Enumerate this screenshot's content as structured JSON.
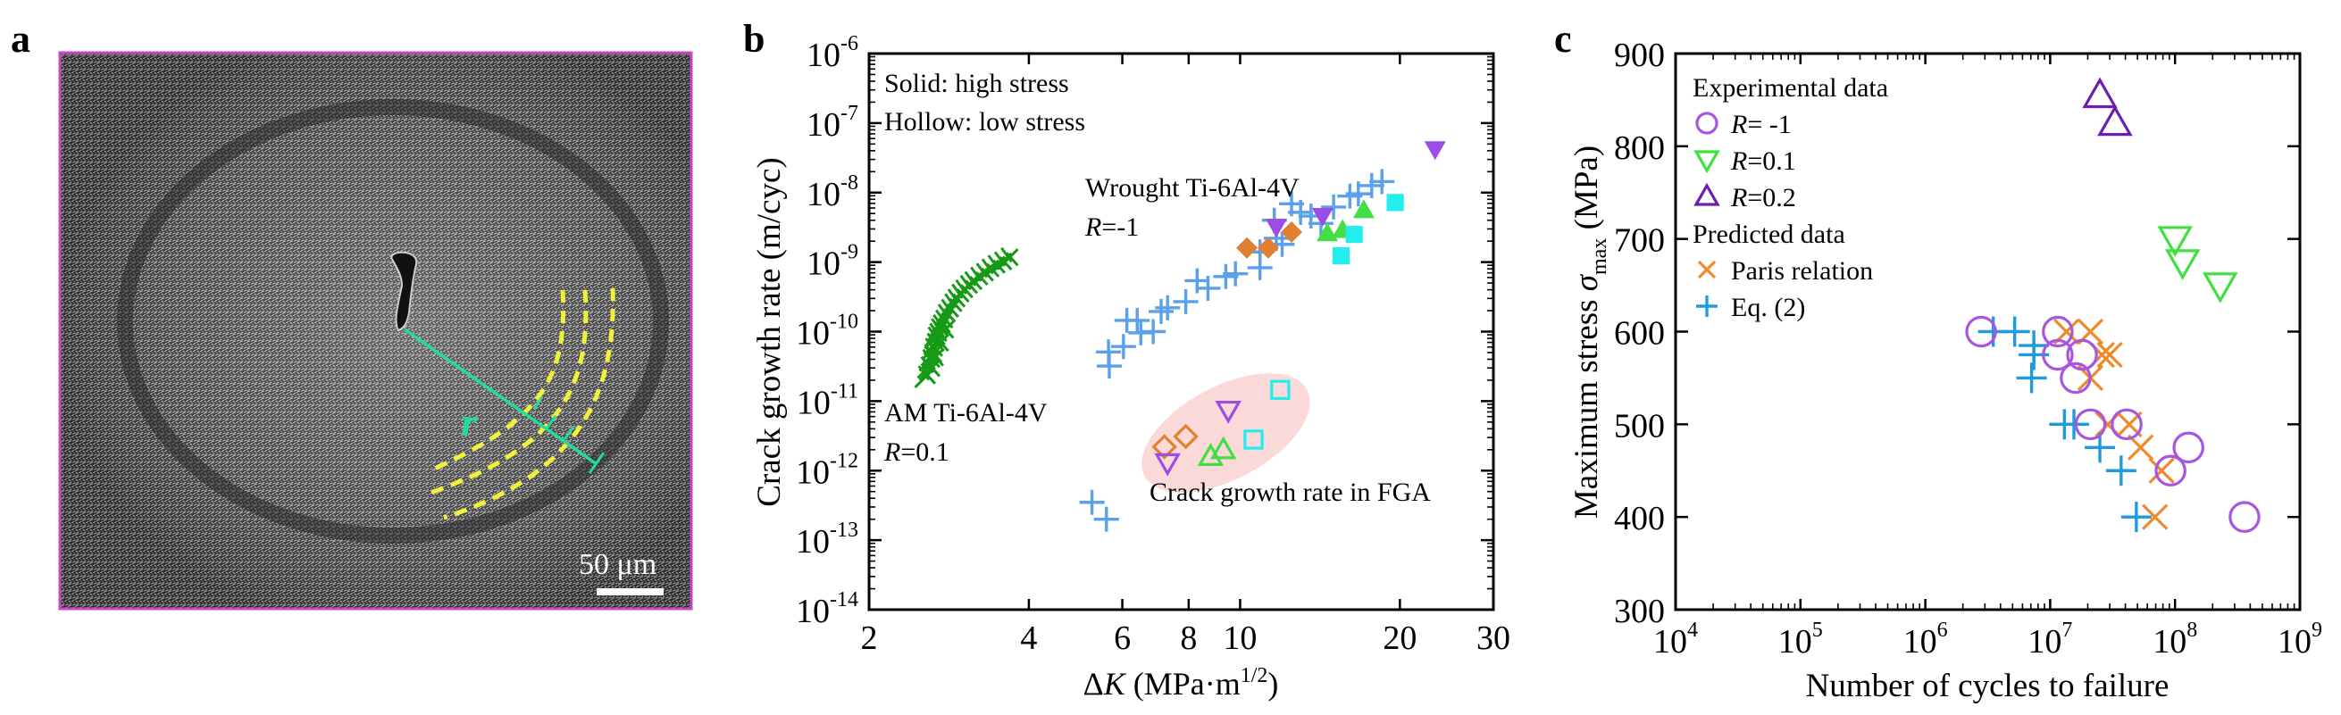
{
  "panels": {
    "a": {
      "label": "a",
      "scale_bar_text": "50 μm",
      "radius_label": "r",
      "frame_color": "#cc44cc",
      "line_color": "#22dd99",
      "arc_color": "#f2f23a"
    },
    "b": {
      "label": "b"
    },
    "c": {
      "label": "c"
    }
  },
  "chart_data": [
    {
      "id": "b",
      "type": "scatter",
      "title": "",
      "xlabel": "ΔK (MPa·m^1/2)",
      "xlabel_parts": {
        "delta": "Δ",
        "var": "K",
        "unit": " (MPa·m",
        "sup": "1/2",
        "close": ")"
      },
      "ylabel": "Crack growth rate (m/cyc)",
      "xscale": "log",
      "yscale": "log",
      "xlim": [
        2,
        30
      ],
      "ylim": [
        1e-14,
        1e-06
      ],
      "xticks": [
        2,
        4,
        6,
        8,
        10,
        20,
        30
      ],
      "yticks_exp": [
        -6,
        -7,
        -8,
        -9,
        -10,
        -11,
        -12,
        -13,
        -14
      ],
      "annotations": [
        {
          "text": "Solid: high stress",
          "pos": "top-left"
        },
        {
          "text": "Hollow: low stress",
          "pos": "top-left"
        },
        {
          "text": "Wrought Ti-6Al-4V",
          "pos": "center-top"
        },
        {
          "text": "R=-1",
          "italic_prefix": "R",
          "rest": "=-1",
          "pos": "center-top"
        },
        {
          "text": "AM Ti-6Al-4V",
          "pos": "left-middle"
        },
        {
          "text": "R=0.1",
          "italic_prefix": "R",
          "rest": "=0.1",
          "pos": "left-middle"
        },
        {
          "text": "Crack growth rate in FGA",
          "pos": "center-bottom"
        }
      ],
      "highlight_region": {
        "label": "Crack growth rate in FGA",
        "color": "#fbd9d9",
        "center": [
          9.4,
          3.5e-12
        ]
      },
      "series": [
        {
          "name": "AM Ti-6Al-4V R=0.1",
          "marker": "x-plus",
          "color": "#169a16",
          "filled": false,
          "points": [
            [
              2.55,
              2.2e-11
            ],
            [
              2.58,
              3e-11
            ],
            [
              2.6,
              3.8e-11
            ],
            [
              2.62,
              4.5e-11
            ],
            [
              2.63,
              5.5e-11
            ],
            [
              2.65,
              6.5e-11
            ],
            [
              2.66,
              8e-11
            ],
            [
              2.68,
              9e-11
            ],
            [
              2.7,
              1.05e-10
            ],
            [
              2.72,
              1.2e-10
            ],
            [
              2.75,
              1.4e-10
            ],
            [
              2.78,
              1.7e-10
            ],
            [
              2.82,
              2e-10
            ],
            [
              2.86,
              2.4e-10
            ],
            [
              2.9,
              2.8e-10
            ],
            [
              2.95,
              3.3e-10
            ],
            [
              3.0,
              3.8e-10
            ],
            [
              3.06,
              4.4e-10
            ],
            [
              3.12,
              5e-10
            ],
            [
              3.2,
              5.8e-10
            ],
            [
              3.28,
              6.6e-10
            ],
            [
              3.36,
              7.6e-10
            ],
            [
              3.45,
              8.6e-10
            ],
            [
              3.55,
              9.6e-10
            ],
            [
              3.65,
              1.1e-09
            ],
            [
              2.6,
              2.8e-11
            ],
            [
              2.64,
              4e-11
            ],
            [
              2.7,
              6.5e-11
            ],
            [
              2.76,
              1e-10
            ]
          ]
        },
        {
          "name": "Wrought Ti-6Al-4V R=-1",
          "marker": "plus",
          "color": "#5aa0ea",
          "filled": false,
          "points": [
            [
              5.26,
              3.5e-13
            ],
            [
              5.6,
              2e-13
            ],
            [
              5.65,
              5.1e-11
            ],
            [
              5.67,
              3.2e-11
            ],
            [
              6.03,
              6.1e-11
            ],
            [
              6.12,
              1.45e-10
            ],
            [
              6.4,
              1.45e-10
            ],
            [
              6.5,
              9.6e-11
            ],
            [
              6.86,
              1e-10
            ],
            [
              7.1,
              1.95e-10
            ],
            [
              7.3,
              2.2e-10
            ],
            [
              7.9,
              2.7e-10
            ],
            [
              8.3,
              5.4e-10
            ],
            [
              8.7,
              4.2e-10
            ],
            [
              9.4,
              6.2e-10
            ],
            [
              9.8,
              6.8e-10
            ],
            [
              10.9,
              8.3e-10
            ],
            [
              10.9,
              1.4e-09
            ],
            [
              11.7,
              2.2e-09
            ],
            [
              11.6,
              4e-09
            ],
            [
              12.5,
              6.9e-09
            ],
            [
              13.0,
              5.2e-09
            ],
            [
              13.6,
              4.6e-09
            ],
            [
              15.0,
              6.2e-09
            ],
            [
              16.1,
              8.9e-09
            ],
            [
              16.7,
              9.6e-09
            ],
            [
              17.7,
              1.26e-08
            ],
            [
              18.5,
              1.44e-08
            ],
            [
              12.0,
              1.8e-09
            ],
            [
              14.2,
              3.6e-09
            ]
          ]
        },
        {
          "name": "Orange diamond (high stress)",
          "marker": "diamond",
          "color": "#e08030",
          "filled": true,
          "points": [
            [
              10.3,
              1.6e-09
            ],
            [
              11.3,
              1.6e-09
            ],
            [
              12.5,
              2.7e-09
            ]
          ]
        },
        {
          "name": "Purple down-triangle (high stress)",
          "marker": "triangle-down",
          "color": "#9b4de6",
          "filled": true,
          "points": [
            [
              11.7,
              3.2e-09
            ],
            [
              14.3,
              4.6e-09
            ],
            [
              23.3,
              4.2e-08
            ]
          ]
        },
        {
          "name": "Green up-triangle (high stress)",
          "marker": "triangle-up",
          "color": "#44dd44",
          "filled": true,
          "points": [
            [
              14.6,
              2.6e-09
            ],
            [
              15.6,
              2.9e-09
            ],
            [
              17.1,
              5.6e-09
            ]
          ]
        },
        {
          "name": "Cyan square (high stress)",
          "marker": "square",
          "color": "#22eeee",
          "filled": true,
          "points": [
            [
              19.6,
              7.2e-09
            ],
            [
              16.4,
              2.5e-09
            ],
            [
              15.5,
              1.23e-09
            ]
          ]
        },
        {
          "name": "Orange diamond (low stress)",
          "marker": "diamond",
          "color": "#e08030",
          "filled": false,
          "points": [
            [
              7.2,
              2.2e-12
            ],
            [
              7.9,
              3.1e-12
            ]
          ]
        },
        {
          "name": "Purple down-triangle (low stress)",
          "marker": "triangle-down",
          "color": "#9b4de6",
          "filled": false,
          "points": [
            [
              7.3,
              1.3e-12
            ],
            [
              9.5,
              7.4e-12
            ]
          ]
        },
        {
          "name": "Green up-triangle (low stress)",
          "marker": "triangle-up",
          "color": "#44dd44",
          "filled": false,
          "points": [
            [
              8.8,
              1.6e-12
            ],
            [
              9.3,
              2e-12
            ]
          ]
        },
        {
          "name": "Cyan square (low stress)",
          "marker": "square",
          "color": "#22eeee",
          "filled": false,
          "points": [
            [
              10.6,
              2.8e-12
            ],
            [
              11.9,
              1.45e-11
            ]
          ]
        }
      ]
    },
    {
      "id": "c",
      "type": "scatter",
      "title": "",
      "xlabel": "Number of cycles to failure",
      "ylabel": "Maximum stress σmax (MPa)",
      "ylabel_parts": {
        "pre": "Maximum stress ",
        "sym": "σ",
        "sub": "max",
        "post": " (MPa)"
      },
      "xscale": "log",
      "yscale": "linear",
      "xlim": [
        10000.0,
        1000000000.0
      ],
      "ylim": [
        300,
        900
      ],
      "xticks_exp": [
        4,
        5,
        6,
        7,
        8,
        9
      ],
      "yticks": [
        300,
        400,
        500,
        600,
        700,
        800,
        900
      ],
      "legend": {
        "placement": "top-left",
        "groups": [
          {
            "title": "Experimental data",
            "entries": [
              {
                "series": "R=-1",
                "italic": "R",
                "rest": "= -1"
              },
              {
                "series": "R=0.1",
                "italic": "R",
                "rest": "=0.1"
              },
              {
                "series": "R=0.2",
                "italic": "R",
                "rest": "=0.2"
              }
            ]
          },
          {
            "title": "Predicted data",
            "entries": [
              {
                "series": "Paris relation",
                "italic": "",
                "rest": "Paris relation"
              },
              {
                "series": "Eq. (2)",
                "italic": "",
                "rest": "Eq. (2)"
              }
            ]
          }
        ]
      },
      "series": [
        {
          "name": "R=-1",
          "marker": "circle",
          "color": "#a855e0",
          "filled": false,
          "points": [
            [
              2800000.0,
              600
            ],
            [
              11500000.0,
              600
            ],
            [
              11500000.0,
              575
            ],
            [
              18000000.0,
              575
            ],
            [
              16000000.0,
              550
            ],
            [
              21000000.0,
              500
            ],
            [
              41000000.0,
              500
            ],
            [
              128000000.0,
              475
            ],
            [
              92000000.0,
              450
            ],
            [
              360000000.0,
              400
            ]
          ]
        },
        {
          "name": "R=0.1",
          "marker": "triangle-down",
          "color": "#3ee03e",
          "filled": false,
          "points": [
            [
              100000000.0,
              700
            ],
            [
              115000000.0,
              675
            ],
            [
              230000000.0,
              650
            ]
          ]
        },
        {
          "name": "R=0.2",
          "marker": "triangle-up",
          "color": "#6a1fb0",
          "filled": false,
          "points": [
            [
              25000000.0,
              855
            ],
            [
              33000000.0,
              825
            ]
          ]
        },
        {
          "name": "Paris relation",
          "marker": "x",
          "color": "#ee8a2a",
          "filled": false,
          "points": [
            [
              13500000.0,
              600
            ],
            [
              21000000.0,
              600
            ],
            [
              26000000.0,
              575
            ],
            [
              30000000.0,
              575
            ],
            [
              21000000.0,
              550
            ],
            [
              29000000.0,
              500
            ],
            [
              43000000.0,
              500
            ],
            [
              53000000.0,
              475
            ],
            [
              78000000.0,
              450
            ],
            [
              69000000.0,
              400
            ]
          ]
        },
        {
          "name": "Eq. (2)",
          "marker": "plus",
          "color": "#1e9be0",
          "filled": false,
          "points": [
            [
              3500000.0,
              600
            ],
            [
              5200000.0,
              600
            ],
            [
              7400000.0,
              585
            ],
            [
              7400000.0,
              575
            ],
            [
              7100000.0,
              550
            ],
            [
              13000000.0,
              500
            ],
            [
              15500000.0,
              500
            ],
            [
              25000000.0,
              475
            ],
            [
              37000000.0,
              450
            ],
            [
              49000000.0,
              400
            ]
          ]
        }
      ]
    }
  ]
}
